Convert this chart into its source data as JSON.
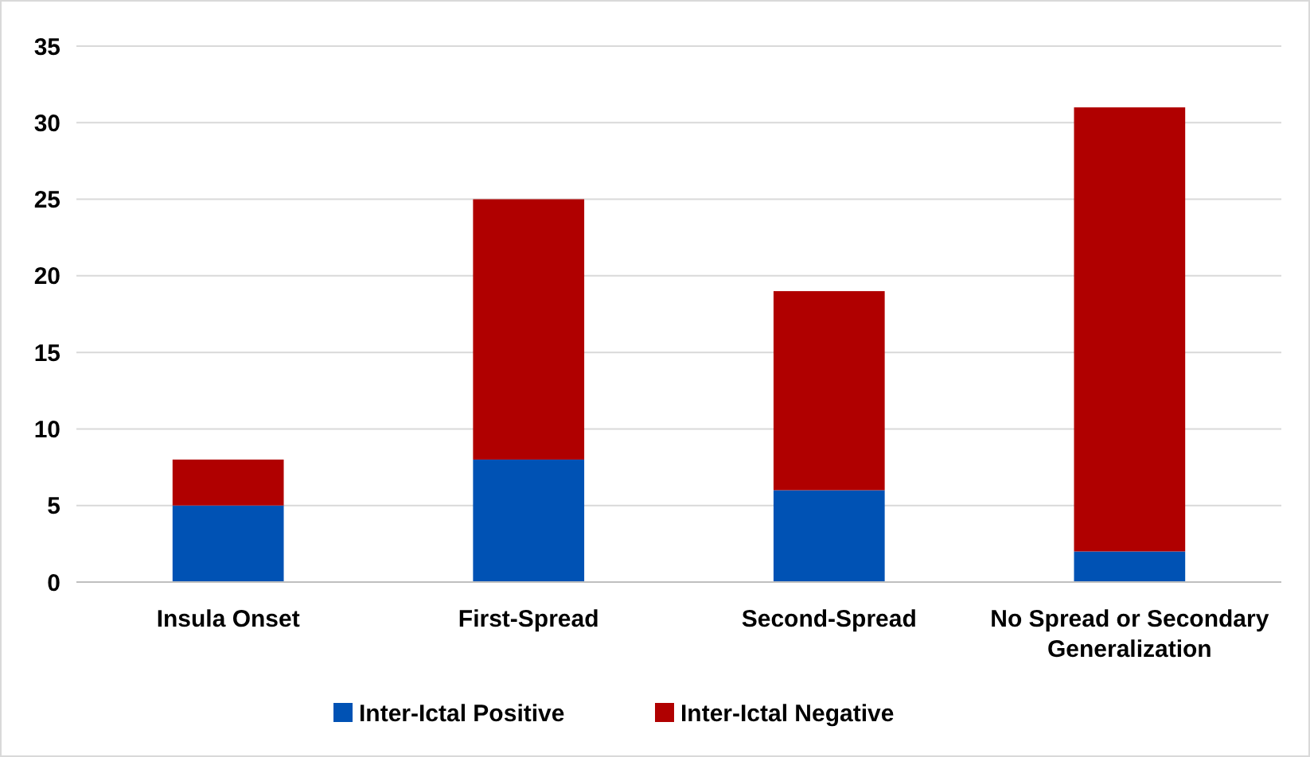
{
  "chart_data": {
    "type": "bar",
    "stacked": true,
    "categories": [
      "Insula Onset",
      "First-Spread",
      "Second-Spread",
      "No Spread or Secondary Generalization"
    ],
    "series": [
      {
        "name": "Inter-Ictal Positive",
        "color": "#0052b4",
        "values": [
          5,
          8,
          6,
          2
        ]
      },
      {
        "name": "Inter-Ictal Negative",
        "color": "#b00000",
        "values": [
          3,
          17,
          13,
          29
        ]
      }
    ],
    "ylim": [
      0,
      35
    ],
    "yticks": [
      0,
      5,
      10,
      15,
      20,
      25,
      30,
      35
    ],
    "grid": "y",
    "legend": "bottom"
  }
}
